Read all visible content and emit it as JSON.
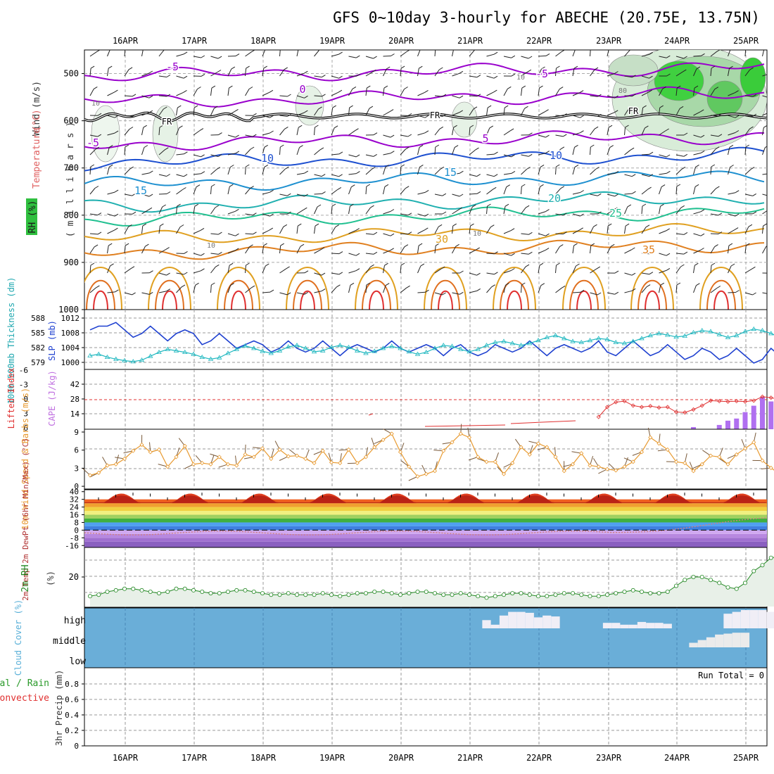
{
  "title": "GFS 0~10day 3-hourly for ABECHE (20.75E, 13.75N)",
  "dates": [
    "16APR",
    "17APR",
    "18APR",
    "19APR",
    "20APR",
    "21APR",
    "22APR",
    "23APR",
    "24APR",
    "25APR"
  ],
  "chart_data": [
    {
      "type": "heatmap",
      "panel": "upper-air",
      "ylabel_parts": [
        {
          "text": "RH (%)",
          "color": "#2a2a2a"
        },
        {
          "text": "Temperature",
          "color": "#e06060"
        },
        {
          "text": "(°C)",
          "color": "#e06060"
        },
        {
          "text": "Wind (m/s)",
          "color": "#333333"
        }
      ],
      "ylabel_inner": "( m i l l i b a r s )",
      "y_ticks": [
        "500",
        "600",
        "700",
        "800",
        "900",
        "1000"
      ],
      "ylim": [
        1000,
        450
      ],
      "temperature_labels": [
        "-5",
        "0",
        "-5",
        "5",
        "-5",
        "10",
        "10",
        "15",
        "15",
        "20",
        "25",
        "30",
        "35"
      ],
      "freezing_label": "FR",
      "rh_labels": [
        "10",
        "10",
        "10",
        "10",
        "80"
      ],
      "isotherms": [
        {
          "t": -5,
          "p": 505,
          "color": "#9900cc"
        },
        {
          "t": 0,
          "p": 560,
          "color": "#9900cc"
        },
        {
          "t": 5,
          "p": 650,
          "color": "#9900cc"
        },
        {
          "t": 10,
          "p": 690,
          "color": "#1e50d0"
        },
        {
          "t": 15,
          "p": 735,
          "color": "#1e90d0"
        },
        {
          "t": 20,
          "p": 780,
          "color": "#20b0b0"
        },
        {
          "t": 25,
          "p": 810,
          "color": "#20c090"
        },
        {
          "t": 30,
          "p": 850,
          "color": "#e0a020"
        },
        {
          "t": 35,
          "p": 880,
          "color": "#e08020"
        }
      ]
    },
    {
      "type": "line",
      "panel": "slp-thickness",
      "ylabel_left": "1000-500mb Thickness (dm)",
      "ylabel_right": "SLP (mb)",
      "thick_ticks": [
        "588",
        "585",
        "582",
        "579"
      ],
      "slp_ticks": [
        "1012",
        "1008",
        "1004",
        "1000"
      ],
      "series": [
        {
          "name": "SLP (mb)",
          "color": "#1e40d0",
          "values": [
            1009,
            1010,
            1010,
            1011,
            1009,
            1007,
            1008,
            1010,
            1008,
            1006,
            1008,
            1009,
            1008,
            1005,
            1006,
            1008,
            1006,
            1004,
            1005,
            1006,
            1005,
            1003,
            1004,
            1006,
            1004,
            1003,
            1004,
            1006,
            1004,
            1002,
            1004,
            1005,
            1004,
            1003,
            1004,
            1006,
            1004,
            1003,
            1004,
            1005,
            1004,
            1002,
            1004,
            1005,
            1003,
            1002,
            1003,
            1005,
            1004,
            1003,
            1004,
            1006,
            1004,
            1002,
            1004,
            1005,
            1004,
            1003,
            1004,
            1006,
            1003,
            1002,
            1004,
            1006,
            1004,
            1002,
            1003,
            1005,
            1003,
            1001,
            1002,
            1004,
            1003,
            1001,
            1002,
            1004,
            1002,
            1000,
            1001,
            1004,
            1002,
            1000,
            1002
          ]
        },
        {
          "name": "1000-500mb Thickness (dm)",
          "color": "#20b8c0",
          "values": [
            580.5,
            580.8,
            580.2,
            579.8,
            579.5,
            579.3,
            579.6,
            580.4,
            581.2,
            581.8,
            581.5,
            581.2,
            580.8,
            580.2,
            579.8,
            580.1,
            581.0,
            581.8,
            582.5,
            582.0,
            581.4,
            581.0,
            581.5,
            582.3,
            582.6,
            582.0,
            581.3,
            581.5,
            582.2,
            582.6,
            582.2,
            581.5,
            581.0,
            581.4,
            582.0,
            582.4,
            582.0,
            581.3,
            580.8,
            581.2,
            582.0,
            582.6,
            582.4,
            581.8,
            581.3,
            581.8,
            582.6,
            583.2,
            583.4,
            583.0,
            582.6,
            583.0,
            583.6,
            584.2,
            584.6,
            584.0,
            583.4,
            583.2,
            583.6,
            584.0,
            583.8,
            583.2,
            583.0,
            583.4,
            584.0,
            584.6,
            585.0,
            584.7,
            584.3,
            584.5,
            585.2,
            585.6,
            585.4,
            584.8,
            584.2,
            584.6,
            585.4,
            585.9,
            585.6,
            585.0,
            584.3,
            583.6,
            583.4
          ]
        }
      ]
    },
    {
      "type": "bar",
      "panel": "cape-li",
      "ylabel_left": "Lifted Index",
      "ylabel_right": "CAPE (J/kg)",
      "li_ticks": [
        "-6",
        "-3",
        "0",
        "3",
        "6"
      ],
      "cape_ticks": [
        "42",
        "28",
        "14"
      ],
      "cape_values": [
        0,
        0,
        0,
        0,
        0,
        0,
        0,
        0,
        0,
        0,
        0,
        0,
        0,
        0,
        0,
        0,
        0,
        0,
        0,
        0,
        0,
        0,
        0,
        0,
        0,
        0,
        0,
        0,
        0,
        0,
        0,
        0,
        0,
        0,
        0,
        0,
        0,
        0,
        0,
        0,
        0,
        0,
        0,
        0,
        0,
        0,
        0,
        0,
        0,
        0,
        0,
        0,
        0,
        0,
        0,
        0,
        0,
        0,
        0,
        0,
        0,
        0,
        0,
        0,
        0,
        0,
        0,
        0,
        0,
        0,
        2,
        0,
        0,
        4,
        8,
        10,
        16,
        22,
        30,
        26,
        32,
        30,
        40,
        0
      ],
      "lifted_index": [
        null,
        null,
        null,
        null,
        null,
        null,
        null,
        null,
        null,
        null,
        null,
        null,
        null,
        null,
        null,
        null,
        null,
        null,
        null,
        null,
        null,
        null,
        null,
        null,
        null,
        null,
        null,
        null,
        null,
        null,
        null,
        null,
        null,
        null,
        null,
        null,
        null,
        null,
        null,
        null,
        null,
        null,
        null,
        null,
        null,
        null,
        null,
        null,
        null,
        null,
        null,
        null,
        null,
        null,
        null,
        null,
        null,
        null,
        null,
        3.5,
        1.5,
        0.5,
        0.3,
        1.2,
        1.5,
        1.3,
        1.6,
        1.5,
        2.5,
        2.6,
        2.0,
        1.2,
        0.2,
        0.3,
        0.4,
        0.3,
        0.4,
        0.2,
        -0.6,
        -0.4,
        0.0,
        -1.5,
        -2.3
      ]
    },
    {
      "type": "line",
      "panel": "wind10m",
      "ylabel": "10m Wind Speed & Barbs (m/s)",
      "y_ticks": [
        "9",
        "6",
        "3",
        "0"
      ],
      "series": [
        {
          "name": "10m Wind Speed",
          "color": "#e89a30",
          "values": [
            1.8,
            2.2,
            3.4,
            3.6,
            4.5,
            5.8,
            6.8,
            5.6,
            6.0,
            3.2,
            4.8,
            6.6,
            3.6,
            3.8,
            3.6,
            4.8,
            3.6,
            3.4,
            5.2,
            4.8,
            6.2,
            4.5,
            6.0,
            4.9,
            5.0,
            4.5,
            3.8,
            5.8,
            3.9,
            3.8,
            6.0,
            3.8,
            4.8,
            6.4,
            7.6,
            8.6,
            5.6,
            3.2,
            1.6,
            2.0,
            2.5,
            5.8,
            7.2,
            8.6,
            8.0,
            4.8,
            4.0,
            4.0,
            2.0,
            3.8,
            6.4,
            5.2,
            7.0,
            6.4,
            4.8,
            2.5,
            3.6,
            5.4,
            3.4,
            3.2,
            2.8,
            2.6,
            3.2,
            4.0,
            5.6,
            8.0,
            7.0,
            6.0,
            4.0,
            3.8,
            2.5,
            3.6,
            5.0,
            4.8,
            3.6,
            5.2,
            6.2,
            7.2,
            4.2,
            3.0,
            2.0,
            0.4,
            2.0,
            4.6,
            7.6
          ]
        }
      ]
    },
    {
      "type": "area",
      "panel": "temp2m",
      "ylabel": "2m Temp 2m DewPt (6hr Min/Max) (°C)",
      "y_ticks": [
        "40",
        "32",
        "24",
        "16",
        "8",
        "0",
        "-8",
        "-16"
      ],
      "ylim": [
        -18,
        42
      ],
      "temp_max": [
        34,
        37,
        39,
        38,
        34,
        37,
        39,
        38,
        34,
        37,
        39,
        38,
        34,
        37,
        39,
        38,
        34,
        37,
        39,
        38,
        34,
        37,
        39,
        38,
        34,
        37,
        39,
        38,
        34,
        37,
        39,
        38,
        34,
        37,
        39,
        38,
        34,
        37,
        39,
        38
      ],
      "temp_min": [
        28,
        28,
        29,
        28,
        28,
        28,
        29,
        28,
        28,
        28,
        29,
        28,
        28,
        28,
        29,
        28,
        28,
        28,
        29,
        28,
        28,
        28,
        29,
        28,
        28,
        28,
        29,
        28,
        28,
        28,
        29,
        28,
        28,
        28,
        29,
        28,
        28,
        28,
        29,
        28
      ]
    },
    {
      "type": "area",
      "panel": "rh2m",
      "ylabel": "2m RH",
      "units": "(%)",
      "y_ticks": [
        "20"
      ],
      "series": [
        {
          "name": "2m RH",
          "color": "#228822",
          "values": [
            7,
            8,
            10,
            11,
            12,
            12,
            11,
            10,
            9,
            10,
            12,
            12,
            11,
            10,
            9,
            9,
            10,
            11,
            11,
            10,
            9,
            8,
            8,
            9,
            8,
            8,
            8,
            9,
            8,
            7,
            8,
            9,
            9,
            10,
            10,
            9,
            8,
            9,
            10,
            10,
            9,
            8,
            8,
            9,
            8,
            7,
            6,
            7,
            8,
            9,
            9,
            8,
            7,
            7,
            8,
            9,
            9,
            8,
            7,
            7,
            8,
            9,
            10,
            11,
            10,
            9,
            9,
            10,
            14,
            18,
            20,
            20,
            18,
            16,
            13,
            12,
            16,
            24,
            28,
            33,
            34,
            32,
            36
          ]
        }
      ]
    },
    {
      "type": "heatmap",
      "panel": "cloud-cover",
      "ylabel": "Cloud Cover (%)",
      "levels": [
        "high",
        "middle",
        "low"
      ],
      "high": [
        0,
        0,
        0,
        0,
        0,
        0,
        0,
        0,
        0,
        0,
        0,
        0,
        0,
        0,
        0,
        0,
        0,
        0,
        0,
        0,
        0,
        0,
        0,
        0,
        0,
        0,
        0,
        0,
        0,
        0,
        0,
        0,
        0,
        0,
        0,
        0,
        0,
        0,
        0,
        0,
        0,
        0,
        0,
        0,
        0,
        0,
        45,
        20,
        70,
        90,
        90,
        85,
        60,
        70,
        65,
        0,
        0,
        0,
        0,
        0,
        30,
        30,
        20,
        20,
        35,
        30,
        30,
        25,
        0,
        0,
        0,
        0,
        0,
        0,
        80,
        90,
        100,
        100,
        100,
        90,
        80,
        70,
        95
      ],
      "middle": [
        0,
        0,
        0,
        0,
        0,
        0,
        0,
        0,
        0,
        0,
        0,
        0,
        0,
        0,
        0,
        0,
        0,
        0,
        0,
        0,
        0,
        0,
        0,
        0,
        0,
        0,
        0,
        0,
        0,
        0,
        0,
        0,
        0,
        0,
        0,
        0,
        0,
        0,
        0,
        0,
        0,
        0,
        0,
        0,
        0,
        0,
        0,
        0,
        0,
        0,
        0,
        0,
        0,
        0,
        0,
        0,
        0,
        0,
        0,
        0,
        0,
        0,
        0,
        0,
        0,
        0,
        0,
        0,
        0,
        0,
        25,
        40,
        55,
        70,
        75,
        80,
        80,
        0,
        0,
        0,
        0,
        0,
        40,
        40,
        80,
        60,
        80
      ]
    },
    {
      "type": "bar",
      "panel": "precip",
      "ylabel_parts": [
        {
          "text": "Total / Rain",
          "color": "#2a9a2a"
        },
        {
          "text": "Convective",
          "color": "#e03030"
        },
        {
          "text": "3hr Precip (mm)",
          "color": "#333333"
        }
      ],
      "y_ticks": [
        "0.8",
        "0.6",
        "0.4",
        "0.2",
        "0"
      ],
      "run_total": "Run Total = 0",
      "values": []
    }
  ]
}
